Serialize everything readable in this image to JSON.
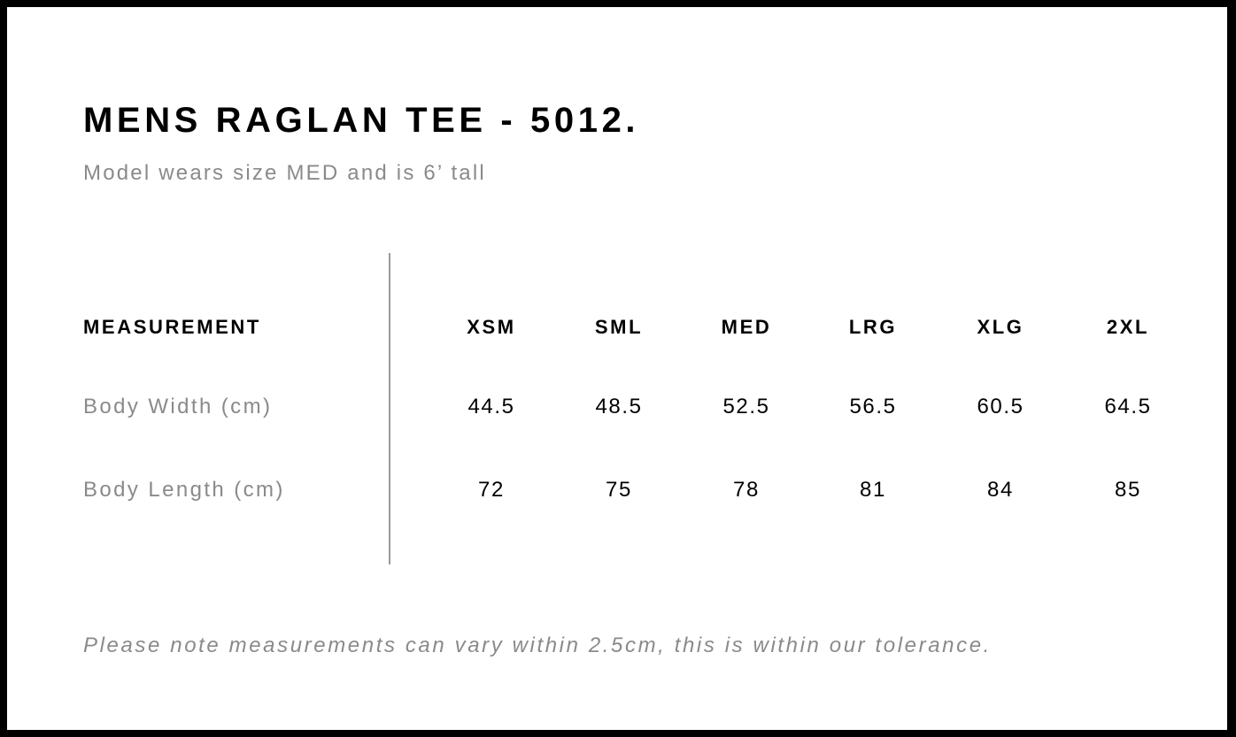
{
  "title": "MENS RAGLAN TEE - 5012.",
  "subtitle": "Model wears size MED and is 6’ tall",
  "table": {
    "header_label": "MEASUREMENT",
    "sizes": [
      "XSM",
      "SML",
      "MED",
      "LRG",
      "XLG",
      "2XL"
    ],
    "rows": [
      {
        "label": "Body Width (cm)",
        "values": [
          "44.5",
          "48.5",
          "52.5",
          "56.5",
          "60.5",
          "64.5"
        ]
      },
      {
        "label": "Body Length (cm)",
        "values": [
          "72",
          "75",
          "78",
          "81",
          "84",
          "85"
        ]
      }
    ]
  },
  "footer": "Please note measurements can vary within 2.5cm, this is within our tolerance."
}
